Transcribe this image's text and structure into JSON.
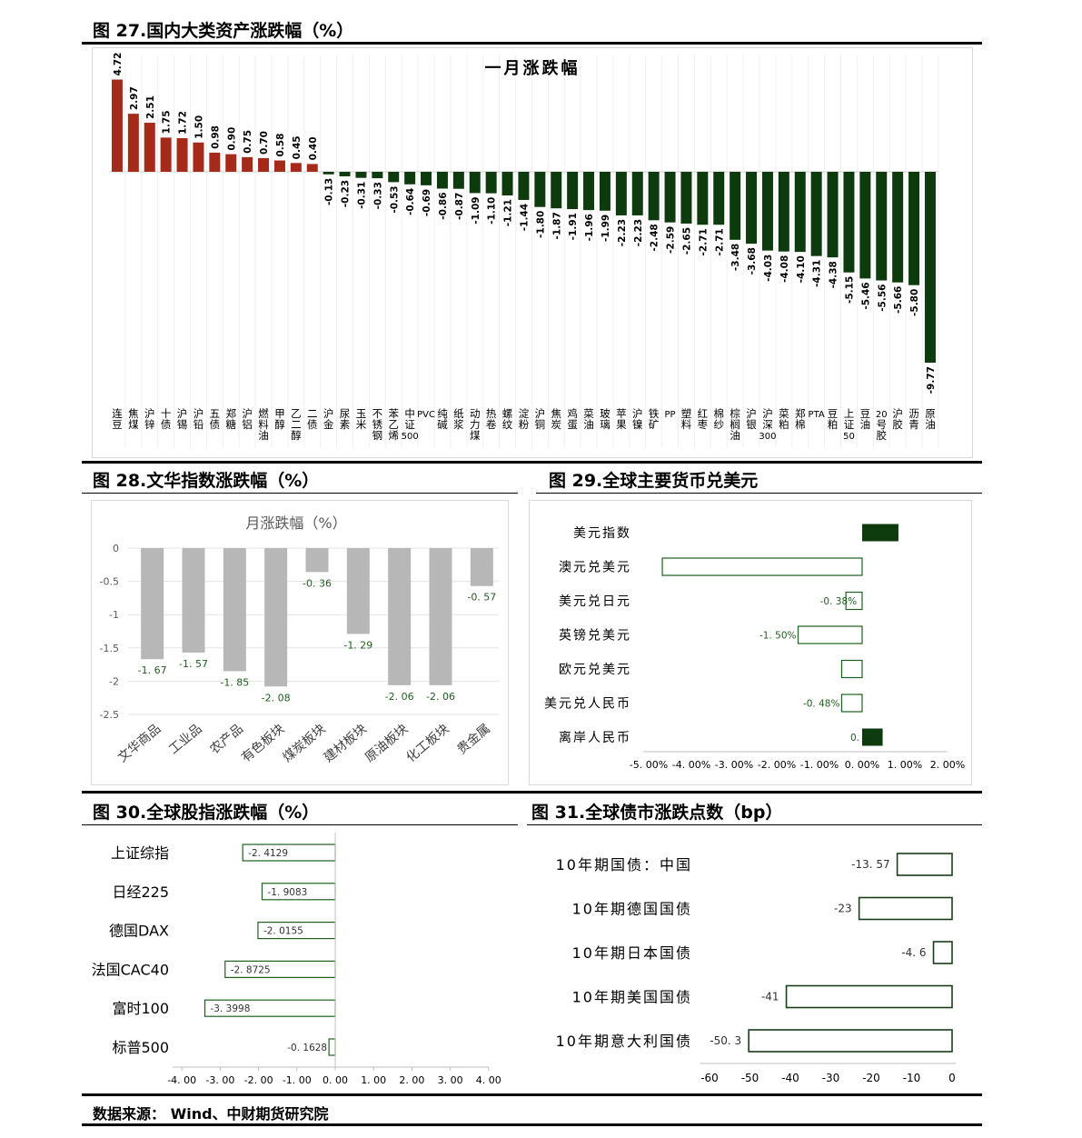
{
  "figures": {
    "fig27_title": "图 27.国内大类资产涨跌幅（%）",
    "fig28_title": "图 28.文华指数涨跌幅（%）",
    "fig29_title": "图 29.全球主要货币兑美元",
    "fig30_title": "图 30.全球股指涨跌幅（%）",
    "fig31_title": "图 31.全球债市涨跌点数（bp）"
  },
  "source": "数据来源： Wind、中财期货研究院",
  "colors": {
    "up": "#a52a1a",
    "down": "#0d3b0d",
    "gray": "#b7b7b7",
    "green": "#1f5f1f"
  },
  "chart_data": [
    {
      "id": "fig27",
      "type": "bar",
      "title": "一月涨跌幅",
      "categories": [
        "连豆",
        "焦煤",
        "沪锌",
        "十债",
        "沪锡",
        "沪铅",
        "五债",
        "郑糖",
        "沪铝",
        "燃料油",
        "甲醇",
        "乙二醇",
        "二债",
        "沪金",
        "尿素",
        "玉米",
        "不锈钢",
        "苯乙烯",
        "中证500",
        "PVC",
        "纯碱",
        "纸浆",
        "动力煤",
        "热卷",
        "螺纹",
        "淀粉",
        "沪铜",
        "焦炭",
        "鸡蛋",
        "菜油",
        "玻璃",
        "苹果",
        "沪镍",
        "铁矿",
        "PP",
        "塑料",
        "红枣",
        "棉纱",
        "棕榈油",
        "沪银",
        "沪深300",
        "菜粕",
        "郑棉",
        "PTA",
        "豆粕",
        "上证50",
        "豆油",
        "20号胶",
        "沪胶",
        "沥青",
        "原油"
      ],
      "values": [
        4.72,
        2.97,
        2.51,
        1.75,
        1.72,
        1.5,
        0.98,
        0.9,
        0.75,
        0.7,
        0.58,
        0.45,
        0.4,
        -0.13,
        -0.23,
        -0.31,
        -0.33,
        -0.53,
        -0.64,
        -0.69,
        -0.86,
        -0.87,
        -1.09,
        -1.1,
        -1.21,
        -1.44,
        -1.8,
        -1.87,
        -1.91,
        -1.96,
        -1.99,
        -2.23,
        -2.23,
        -2.48,
        -2.59,
        -2.65,
        -2.71,
        -2.71,
        -3.48,
        -3.68,
        -4.03,
        -4.08,
        -4.1,
        -4.31,
        -4.38,
        -5.15,
        -5.46,
        -5.56,
        -5.66,
        -5.8,
        -9.77
      ],
      "value_labels": [
        "4.72",
        "2.97",
        "2.51",
        "1.75",
        "1.72",
        "1.50",
        "0.98",
        "0.90",
        "0.75",
        "0.70",
        "0.58",
        "0.45",
        "0.40",
        "-0.13",
        "-0.23",
        "-0.31",
        "-0.33",
        "-0.53",
        "-0.64",
        "-0.69",
        "-0.86",
        "-0.87",
        "-1.09",
        "-1.10",
        "-1.21",
        "-1.44",
        "-1.80",
        "-1.87",
        "-1.91",
        "-1.96",
        "-1.99",
        "-2.23",
        "-2.23",
        "-2.48",
        "-2.59",
        "-2.65",
        "-2.71",
        "-2.71",
        "-3.48",
        "-3.68",
        "-4.03",
        "-4.08",
        "-4.10",
        "-4.31",
        "-4.38",
        "-5.15",
        "-5.46",
        "-5.56",
        "-5.66",
        "-5.80",
        "-9.77"
      ],
      "ylim": [
        -9.77,
        4.72
      ],
      "grid": true
    },
    {
      "id": "fig28",
      "type": "bar",
      "title": "月涨跌幅（%）",
      "categories": [
        "文华商品",
        "工业品",
        "农产品",
        "有色板块",
        "煤炭板块",
        "建材板块",
        "原油板块",
        "化工板块",
        "贵金属"
      ],
      "values": [
        -1.67,
        -1.57,
        -1.85,
        -2.08,
        -0.36,
        -1.29,
        -2.06,
        -2.06,
        -0.57
      ],
      "value_labels": [
        "-1. 67",
        "-1. 57",
        "-1. 85",
        "-2. 08",
        "-0. 36",
        "-1. 29",
        "-2. 06",
        "-2. 06",
        "-0. 57"
      ],
      "yticks": [
        "0",
        "-0.5",
        "-1",
        "-1.5",
        "-2",
        "-2.5"
      ],
      "ytick_values": [
        0,
        -0.5,
        -1,
        -1.5,
        -2,
        -2.5
      ],
      "ylim": [
        -2.5,
        0
      ],
      "grid": true
    },
    {
      "id": "fig29",
      "type": "bar",
      "orientation": "horizontal",
      "categories": [
        "美元指数",
        "澳元兑美元",
        "美元兑日元",
        "英镑兑美元",
        "欧元兑美元",
        "美元兑人民币",
        "离岸人民币"
      ],
      "values": [
        0.85,
        -4.68,
        -0.38,
        -1.5,
        -0.48,
        -0.48,
        0.48
      ],
      "value_labels": [
        "",
        "",
        "-0. 38%",
        "-1. 50%",
        "",
        "-0. 48%",
        "0."
      ],
      "filled": [
        true,
        false,
        false,
        false,
        false,
        false,
        true
      ],
      "xticks": [
        "-5. 00%",
        "-4. 00%",
        "-3. 00%",
        "-2. 00%",
        "-1. 00%",
        "0. 00%",
        "1. 00%",
        "2. 00%"
      ],
      "xtick_values": [
        -5,
        -4,
        -3,
        -2,
        -1,
        0,
        1,
        2
      ],
      "xlim": [
        -5,
        2
      ]
    },
    {
      "id": "fig30",
      "type": "bar",
      "orientation": "horizontal",
      "categories": [
        "上证综指",
        "日经225",
        "德国DAX",
        "法国CAC40",
        "富时100",
        "标普500"
      ],
      "values": [
        -2.4129,
        -1.9083,
        -2.0155,
        -2.8725,
        -3.3998,
        -0.1628
      ],
      "value_labels": [
        "-2. 4129",
        "-1. 9083",
        "-2. 0155",
        "-2. 8725",
        "-3. 3998",
        "-0. 1628"
      ],
      "xticks": [
        "-4. 00",
        "-3. 00",
        "-2. 00",
        "-1. 00",
        "0. 00",
        "1. 00",
        "2. 00",
        "3. 00",
        "4. 00"
      ],
      "xtick_values": [
        -4,
        -3,
        -2,
        -1,
        0,
        1,
        2,
        3,
        4
      ],
      "xlim": [
        -4,
        4
      ]
    },
    {
      "id": "fig31",
      "type": "bar",
      "orientation": "horizontal",
      "categories": [
        "10年期国债：中国",
        "10年期德国国债",
        "10年期日本国债",
        "10年期美国国债",
        "10年期意大利国债"
      ],
      "values": [
        -13.57,
        -23,
        -4.6,
        -41,
        -50.3
      ],
      "value_labels": [
        "-13. 57",
        "-23",
        "-4. 6",
        "-41",
        "-50. 3"
      ],
      "xticks": [
        "-60",
        "-50",
        "-40",
        "-30",
        "-20",
        "-10",
        "0"
      ],
      "xtick_values": [
        -60,
        -50,
        -40,
        -30,
        -20,
        -10,
        0
      ],
      "xlim": [
        -60,
        0
      ]
    }
  ]
}
